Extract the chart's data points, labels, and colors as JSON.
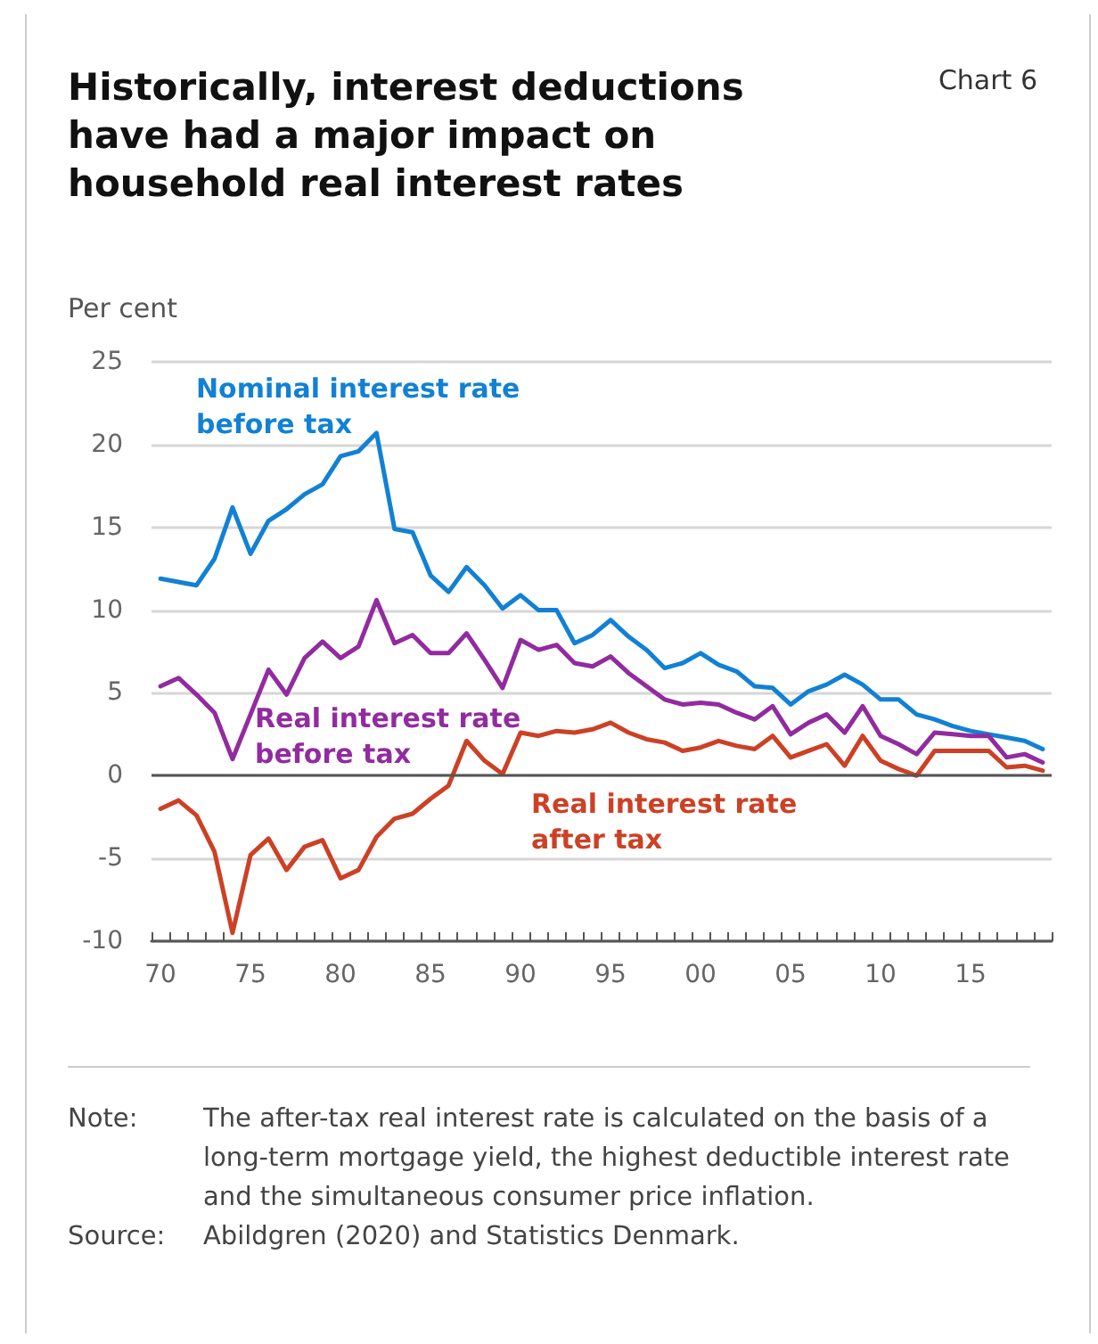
{
  "chart_data": {
    "type": "line",
    "title": "Historically, interest deductions have had a major impact on household real interest rates",
    "subtitle": "Chart 6",
    "ylabel": "Per cent",
    "categories": [
      "70",
      null,
      null,
      null,
      null,
      "75",
      null,
      null,
      null,
      null,
      "80",
      null,
      null,
      null,
      null,
      "85",
      null,
      null,
      null,
      null,
      "90",
      null,
      null,
      null,
      null,
      "95",
      null,
      null,
      null,
      null,
      "00",
      null,
      null,
      null,
      null,
      "05",
      null,
      null,
      null,
      null,
      "10",
      null,
      null,
      null,
      null,
      "15",
      null,
      null,
      null,
      null
    ],
    "series": [
      {
        "name": "Nominal interest rate before tax",
        "color": "#1281d3",
        "values": [
          11.9,
          11.7,
          11.5,
          13.1,
          16.2,
          13.4,
          15.4,
          16.1,
          17.0,
          17.6,
          19.3,
          19.6,
          20.7,
          14.9,
          14.7,
          12.1,
          11.1,
          12.6,
          11.5,
          10.1,
          10.9,
          10.0,
          10.0,
          8.0,
          8.5,
          9.4,
          8.4,
          7.6,
          6.5,
          6.8,
          7.4,
          6.7,
          6.3,
          5.4,
          5.3,
          4.3,
          5.1,
          5.5,
          6.1,
          5.5,
          4.6,
          4.6,
          3.7,
          3.4,
          3.0,
          2.7,
          2.5,
          2.3,
          2.1,
          1.6
        ]
      },
      {
        "name": "Real interest rate before tax",
        "color": "#922b9f",
        "values": [
          5.4,
          5.9,
          4.9,
          3.8,
          1.0,
          3.7,
          6.4,
          4.9,
          7.1,
          8.1,
          7.1,
          7.8,
          10.6,
          8.0,
          8.5,
          7.4,
          7.4,
          8.6,
          7.0,
          5.3,
          8.2,
          7.6,
          7.9,
          6.8,
          6.6,
          7.2,
          6.2,
          5.4,
          4.6,
          4.3,
          4.4,
          4.3,
          3.8,
          3.4,
          4.2,
          2.5,
          3.2,
          3.7,
          2.6,
          4.2,
          2.4,
          1.9,
          1.3,
          2.6,
          2.5,
          2.4,
          2.4,
          1.1,
          1.3,
          0.8
        ]
      },
      {
        "name": "Real interest rate after tax",
        "color": "#cc4125",
        "values": [
          -2.0,
          -1.5,
          -2.4,
          -4.6,
          -9.5,
          -4.8,
          -3.8,
          -5.7,
          -4.3,
          -3.9,
          -6.2,
          -5.7,
          -3.7,
          -2.6,
          -2.3,
          -1.4,
          -0.6,
          2.1,
          0.9,
          0.1,
          2.6,
          2.4,
          2.7,
          2.6,
          2.8,
          3.2,
          2.6,
          2.2,
          2.0,
          1.5,
          1.7,
          2.1,
          1.8,
          1.6,
          2.4,
          1.1,
          1.5,
          1.9,
          0.6,
          2.4,
          0.9,
          0.4,
          0.0,
          1.5,
          1.5,
          1.5,
          1.5,
          0.5,
          0.6,
          0.3
        ]
      }
    ],
    "ylim": [
      -10,
      25
    ],
    "yticks": [
      -10,
      -5,
      0,
      5,
      10,
      15,
      20,
      25
    ],
    "grid": "y",
    "marker": "none",
    "line_style": "solid",
    "ref_lines": [
      {
        "axis": "y",
        "value": 0,
        "color": "#555555"
      }
    ],
    "annotations": [
      "Note: The after-tax real interest rate is calculated on the basis of a long-term mortgage yield, the highest deductible interest rate and the simultaneous consumer price inflation.",
      "Source: Abildgren (2020) and Statistics Denmark."
    ]
  }
}
